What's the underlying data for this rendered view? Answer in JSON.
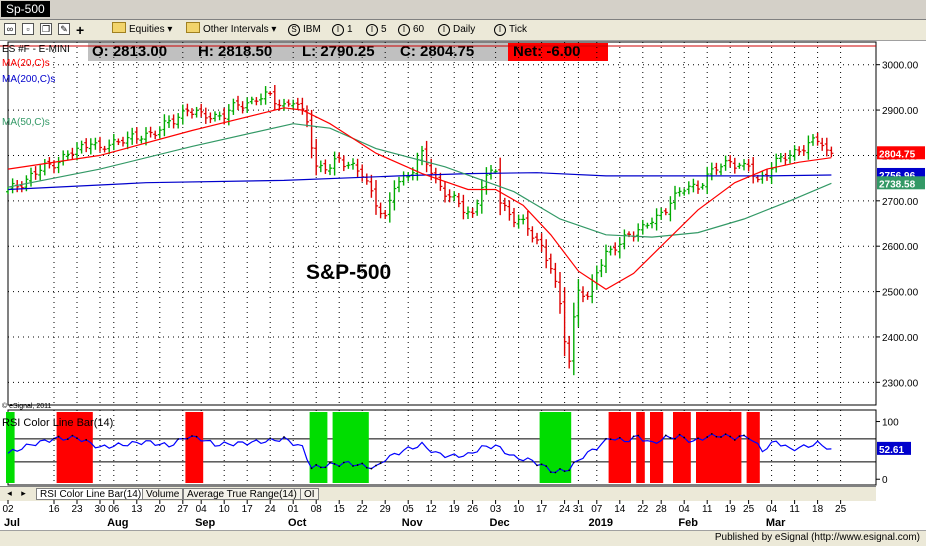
{
  "window": {
    "title": "Sp-500"
  },
  "toolbar": {
    "equities": "Equities",
    "other_intervals": "Other Intervals",
    "buttons": [
      {
        "icon": "S",
        "label": "IBM"
      },
      {
        "icon": "I",
        "label": "1"
      },
      {
        "icon": "I",
        "label": "5"
      },
      {
        "icon": "I",
        "label": "60"
      },
      {
        "icon": "I",
        "label": "Daily"
      },
      {
        "icon": "I",
        "label": "Tick"
      }
    ]
  },
  "quote": {
    "open": "O: 2813.00",
    "high": "H: 2818.50",
    "low": "L: 2790.25",
    "close": "C: 2804.75",
    "net": "Net: -6.00"
  },
  "legend": {
    "symbol": "ES #F - E-MINI",
    "ma20": "MA(20,C)s",
    "ma200": "MA(200,C)s",
    "ma50": "MA(50,C)s",
    "copyright": "© eSignal, 2011",
    "rsi": "RSI Color Line Bar(14)"
  },
  "annotation": "S&P-500",
  "tabs": [
    "RSI Color Line Bar(14)",
    "Volume",
    "Average True Range(14)",
    "OI"
  ],
  "footer": "Published by eSignal (http://www.esignal.com)",
  "colors": {
    "up": "#00aa00",
    "down": "#dd0000",
    "ma20": "#ff0000",
    "ma50": "#339966",
    "ma200": "#0000cc",
    "rsi_line": "#0000ff",
    "overbought": "#ff0000",
    "oversold": "#00dd00",
    "last_close": "#ff0000"
  },
  "chart_data": {
    "type": "ohlc-bar",
    "price_axis": {
      "min": 2250,
      "max": 3050,
      "ticks": [
        3000.0,
        2900.0,
        2800.0,
        2700.0,
        2600.0,
        2500.0,
        2400.0,
        2300.0
      ]
    },
    "price_labels": [
      {
        "value": 2804.75,
        "text": "2804.75",
        "color": "#ff0000"
      },
      {
        "value": 2756.96,
        "text": "2756.96",
        "color": "#0000cc"
      },
      {
        "value": 2738.58,
        "text": "2738.58",
        "color": "#339966"
      }
    ],
    "rsi_axis": {
      "min": -10,
      "max": 120,
      "ticks": [
        100,
        0
      ],
      "levels": [
        70,
        30
      ],
      "last": "52.61"
    },
    "x_labels": [
      {
        "idx": 0,
        "day": "02",
        "month": "Jul"
      },
      {
        "idx": 10,
        "day": "16"
      },
      {
        "idx": 15,
        "day": "23"
      },
      {
        "idx": 20,
        "day": "30"
      },
      {
        "idx": 23,
        "day": "06",
        "month": "Aug"
      },
      {
        "idx": 28,
        "day": "13"
      },
      {
        "idx": 33,
        "day": "20"
      },
      {
        "idx": 38,
        "day": "27"
      },
      {
        "idx": 42,
        "day": "04",
        "month": "Sep"
      },
      {
        "idx": 47,
        "day": "10"
      },
      {
        "idx": 52,
        "day": "17"
      },
      {
        "idx": 57,
        "day": "24"
      },
      {
        "idx": 62,
        "day": "01",
        "month": "Oct"
      },
      {
        "idx": 67,
        "day": "08"
      },
      {
        "idx": 72,
        "day": "15"
      },
      {
        "idx": 77,
        "day": "22"
      },
      {
        "idx": 82,
        "day": "29"
      },
      {
        "idx": 87,
        "day": "05",
        "month": "Nov"
      },
      {
        "idx": 92,
        "day": "12"
      },
      {
        "idx": 97,
        "day": "19"
      },
      {
        "idx": 101,
        "day": "26"
      },
      {
        "idx": 106,
        "day": "03",
        "month": "Dec"
      },
      {
        "idx": 111,
        "day": "10"
      },
      {
        "idx": 116,
        "day": "17"
      },
      {
        "idx": 121,
        "day": "24"
      },
      {
        "idx": 124,
        "day": "31"
      },
      {
        "idx": 128,
        "day": "07",
        "month": "2019"
      },
      {
        "idx": 133,
        "day": "14"
      },
      {
        "idx": 138,
        "day": "22"
      },
      {
        "idx": 142,
        "day": "28"
      },
      {
        "idx": 147,
        "day": "04",
        "month": "Feb"
      },
      {
        "idx": 152,
        "day": "11"
      },
      {
        "idx": 157,
        "day": "19"
      },
      {
        "idx": 161,
        "day": "25"
      },
      {
        "idx": 166,
        "day": "04",
        "month": "Mar"
      },
      {
        "idx": 171,
        "day": "11"
      },
      {
        "idx": 176,
        "day": "18"
      },
      {
        "idx": 181,
        "day": "25"
      }
    ],
    "last_index": 179,
    "closes": [
      [
        0,
        2720
      ],
      [
        5,
        2755
      ],
      [
        10,
        2785
      ],
      [
        15,
        2810
      ],
      [
        18,
        2835
      ],
      [
        20,
        2810
      ],
      [
        25,
        2840
      ],
      [
        28,
        2835
      ],
      [
        32,
        2855
      ],
      [
        36,
        2875
      ],
      [
        39,
        2905
      ],
      [
        42,
        2885
      ],
      [
        47,
        2890
      ],
      [
        50,
        2910
      ],
      [
        54,
        2925
      ],
      [
        57,
        2930
      ],
      [
        60,
        2910
      ],
      [
        62,
        2918
      ],
      [
        65,
        2880
      ],
      [
        67,
        2775
      ],
      [
        70,
        2770
      ],
      [
        72,
        2795
      ],
      [
        75,
        2775
      ],
      [
        77,
        2755
      ],
      [
        80,
        2700
      ],
      [
        82,
        2660
      ],
      [
        84,
        2730
      ],
      [
        87,
        2760
      ],
      [
        90,
        2800
      ],
      [
        93,
        2745
      ],
      [
        96,
        2710
      ],
      [
        99,
        2680
      ],
      [
        101,
        2670
      ],
      [
        103,
        2735
      ],
      [
        106,
        2770
      ],
      [
        107,
        2700
      ],
      [
        110,
        2660
      ],
      [
        113,
        2640
      ],
      [
        116,
        2600
      ],
      [
        118,
        2550
      ],
      [
        120,
        2470
      ],
      [
        121,
        2400
      ],
      [
        122,
        2351
      ],
      [
        123,
        2440
      ],
      [
        124,
        2505
      ],
      [
        126,
        2480
      ],
      [
        128,
        2550
      ],
      [
        130,
        2585
      ],
      [
        133,
        2600
      ],
      [
        135,
        2630
      ],
      [
        138,
        2640
      ],
      [
        141,
        2660
      ],
      [
        144,
        2700
      ],
      [
        147,
        2725
      ],
      [
        150,
        2735
      ],
      [
        154,
        2770
      ],
      [
        157,
        2790
      ],
      [
        160,
        2770
      ],
      [
        161,
        2775
      ],
      [
        163,
        2745
      ],
      [
        165,
        2765
      ],
      [
        168,
        2790
      ],
      [
        171,
        2810
      ],
      [
        174,
        2820
      ],
      [
        176,
        2835
      ],
      [
        177,
        2830
      ],
      [
        178,
        2810
      ],
      [
        179,
        2804.75
      ]
    ],
    "ma20": [
      [
        0,
        2770
      ],
      [
        20,
        2800
      ],
      [
        40,
        2855
      ],
      [
        60,
        2905
      ],
      [
        64,
        2900
      ],
      [
        70,
        2870
      ],
      [
        80,
        2805
      ],
      [
        90,
        2760
      ],
      [
        100,
        2725
      ],
      [
        106,
        2725
      ],
      [
        112,
        2690
      ],
      [
        118,
        2625
      ],
      [
        124,
        2545
      ],
      [
        130,
        2505
      ],
      [
        136,
        2540
      ],
      [
        142,
        2600
      ],
      [
        150,
        2680
      ],
      [
        158,
        2740
      ],
      [
        165,
        2770
      ],
      [
        172,
        2785
      ],
      [
        179,
        2795
      ]
    ],
    "ma50": [
      [
        0,
        2730
      ],
      [
        20,
        2770
      ],
      [
        40,
        2820
      ],
      [
        62,
        2870
      ],
      [
        70,
        2860
      ],
      [
        80,
        2815
      ],
      [
        95,
        2775
      ],
      [
        110,
        2720
      ],
      [
        120,
        2660
      ],
      [
        130,
        2625
      ],
      [
        140,
        2620
      ],
      [
        150,
        2630
      ],
      [
        160,
        2660
      ],
      [
        170,
        2700
      ],
      [
        179,
        2738.58
      ]
    ],
    "ma200": [
      [
        0,
        2725
      ],
      [
        30,
        2740
      ],
      [
        60,
        2745
      ],
      [
        85,
        2755
      ],
      [
        100,
        2760
      ],
      [
        115,
        2762
      ],
      [
        130,
        2755
      ],
      [
        150,
        2755
      ],
      [
        165,
        2755
      ],
      [
        179,
        2756.96
      ]
    ],
    "rsi": [
      [
        0,
        45
      ],
      [
        5,
        60
      ],
      [
        10,
        70
      ],
      [
        15,
        72
      ],
      [
        20,
        55
      ],
      [
        25,
        60
      ],
      [
        30,
        65
      ],
      [
        35,
        58
      ],
      [
        39,
        74
      ],
      [
        42,
        70
      ],
      [
        45,
        60
      ],
      [
        50,
        62
      ],
      [
        55,
        65
      ],
      [
        60,
        70
      ],
      [
        64,
        55
      ],
      [
        66,
        20
      ],
      [
        68,
        22
      ],
      [
        70,
        25
      ],
      [
        74,
        28
      ],
      [
        78,
        22
      ],
      [
        80,
        20
      ],
      [
        82,
        35
      ],
      [
        86,
        50
      ],
      [
        90,
        60
      ],
      [
        93,
        45
      ],
      [
        96,
        40
      ],
      [
        100,
        42
      ],
      [
        103,
        55
      ],
      [
        106,
        58
      ],
      [
        110,
        38
      ],
      [
        114,
        32
      ],
      [
        117,
        20
      ],
      [
        119,
        12
      ],
      [
        122,
        18
      ],
      [
        125,
        40
      ],
      [
        128,
        55
      ],
      [
        131,
        72
      ],
      [
        134,
        66
      ],
      [
        137,
        74
      ],
      [
        140,
        62
      ],
      [
        143,
        72
      ],
      [
        146,
        74
      ],
      [
        149,
        65
      ],
      [
        152,
        74
      ],
      [
        155,
        76
      ],
      [
        158,
        72
      ],
      [
        161,
        74
      ],
      [
        164,
        50
      ],
      [
        167,
        66
      ],
      [
        170,
        52
      ],
      [
        173,
        56
      ],
      [
        176,
        62
      ],
      [
        179,
        52.61
      ]
    ],
    "rsi_zones": [
      {
        "from": 0,
        "to": 1,
        "color": "green"
      },
      {
        "from": 11,
        "to": 18,
        "color": "red"
      },
      {
        "from": 39,
        "to": 42,
        "color": "red"
      },
      {
        "from": 66,
        "to": 69,
        "color": "green"
      },
      {
        "from": 71,
        "to": 78,
        "color": "green"
      },
      {
        "from": 116,
        "to": 122,
        "color": "green"
      },
      {
        "from": 131,
        "to": 135,
        "color": "red"
      },
      {
        "from": 137,
        "to": 138,
        "color": "red"
      },
      {
        "from": 140,
        "to": 142,
        "color": "red"
      },
      {
        "from": 145,
        "to": 148,
        "color": "red"
      },
      {
        "from": 150,
        "to": 159,
        "color": "red"
      },
      {
        "from": 161,
        "to": 163,
        "color": "red"
      }
    ]
  }
}
